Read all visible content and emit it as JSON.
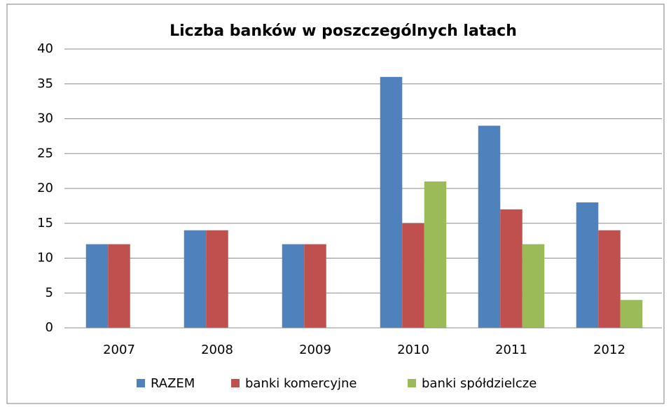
{
  "chart_data": {
    "type": "bar",
    "title": "Liczba banków w poszczególnych latach",
    "categories": [
      "2007",
      "2008",
      "2009",
      "2010",
      "2011",
      "2012"
    ],
    "series": [
      {
        "name": "RAZEM",
        "color": "#4f81bd",
        "values": [
          12,
          14,
          12,
          36,
          29,
          18
        ]
      },
      {
        "name": "banki komercyjne",
        "color": "#c0504d",
        "values": [
          12,
          14,
          12,
          15,
          17,
          14
        ]
      },
      {
        "name": "banki spółdzielcze",
        "color": "#9bbb59",
        "values": [
          null,
          null,
          null,
          21,
          12,
          4
        ]
      }
    ],
    "ylim": [
      0,
      40
    ],
    "yticks": [
      0,
      5,
      10,
      15,
      20,
      25,
      30,
      35,
      40
    ],
    "grid": true,
    "legend": "bottom"
  }
}
